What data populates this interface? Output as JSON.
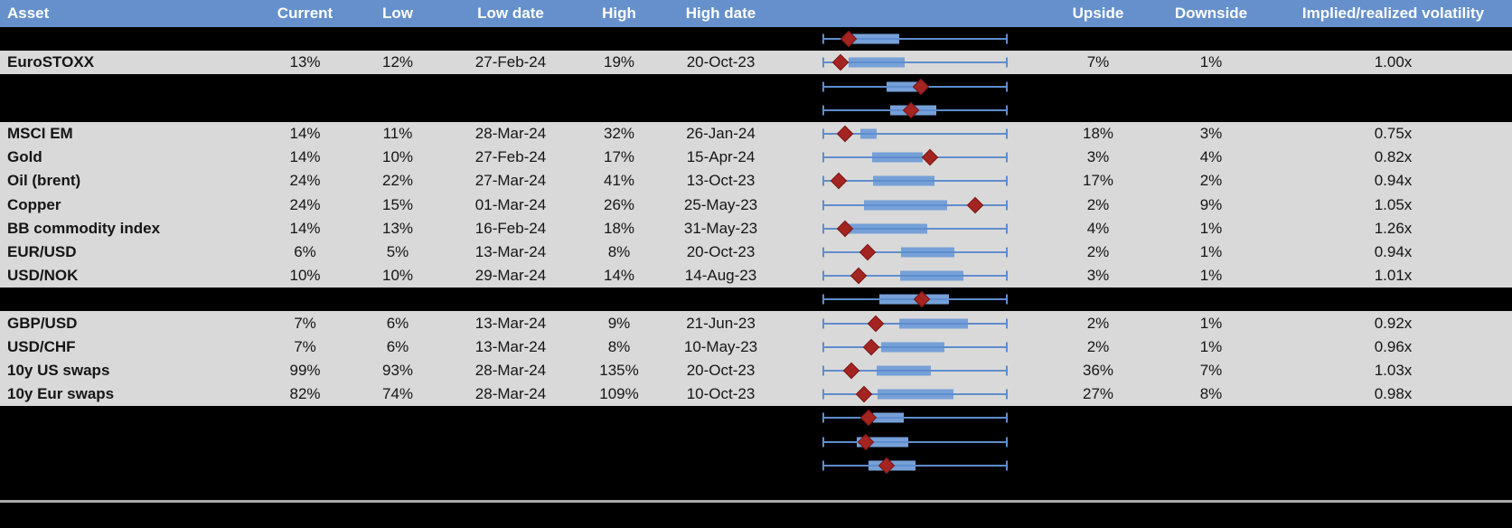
{
  "header": {
    "columns": [
      {
        "label": "Asset"
      },
      {
        "label": "Current"
      },
      {
        "label": "Low"
      },
      {
        "label": "Low date"
      },
      {
        "label": "High"
      },
      {
        "label": "High date"
      },
      {
        "label": ""
      },
      {
        "label": "Upside"
      },
      {
        "label": "Downside"
      },
      {
        "label": "Implied/realized volatility"
      }
    ]
  },
  "colors": {
    "header_bg": "#6590cb",
    "header_text": "#ffffff",
    "row_gray": "#d9d9d9",
    "row_hidden": "#000000",
    "box_fill": "#76a0d8",
    "whisker_blue": "#5f8dce",
    "marker_red": "#a32421",
    "bottom_divider": "#ababab"
  },
  "chart_data": {
    "type": "table",
    "title": "",
    "notes": "Implied volatility table with per-row box-whisker range chart; whiskers span full 12m low-high range (0-100% of plot width), box = middle range, red diamond = current level. Hidden rows are blacked out but their boxplots remain visible. Geometry values are percent of plot width.",
    "boxplot_scale": {
      "min_pct": 0,
      "max_pct": 100
    },
    "rows": [
      {
        "type": "hidden",
        "boxplot": {
          "box_start": 15.1,
          "box_end": 41.5,
          "marker": 14.1
        }
      },
      {
        "type": "data",
        "asset": "EuroSTOXX",
        "current": "13%",
        "low": "12%",
        "low_date": "27-Feb-24",
        "high": "19%",
        "high_date": "20-Oct-23",
        "upside": "7%",
        "downside": "1%",
        "implied_realized": "1.00x",
        "boxplot": {
          "box_start": 14.1,
          "box_end": 44.4,
          "marker": 9.8
        }
      },
      {
        "type": "hidden",
        "boxplot": {
          "box_start": 34.6,
          "box_end": 51.2,
          "marker": 53.2
        }
      },
      {
        "type": "hidden",
        "boxplot": {
          "box_start": 36.6,
          "box_end": 61.5,
          "marker": 47.8
        }
      },
      {
        "type": "data",
        "asset": "MSCI EM",
        "current": "14%",
        "low": "11%",
        "low_date": "28-Mar-24",
        "high": "32%",
        "high_date": "26-Jan-24",
        "upside": "18%",
        "downside": "3%",
        "implied_realized": "0.75x",
        "boxplot": {
          "box_start": 20.5,
          "box_end": 29.3,
          "marker": 12.2
        }
      },
      {
        "type": "data",
        "asset": "Gold",
        "current": "14%",
        "low": "10%",
        "low_date": "27-Feb-24",
        "high": "17%",
        "high_date": "15-Apr-24",
        "upside": "3%",
        "downside": "4%",
        "implied_realized": "0.82x",
        "boxplot": {
          "box_start": 26.8,
          "box_end": 54.1,
          "marker": 58.0
        }
      },
      {
        "type": "data",
        "asset": "Oil (brent)",
        "current": "24%",
        "low": "22%",
        "low_date": "27-Mar-24",
        "high": "41%",
        "high_date": "13-Oct-23",
        "upside": "17%",
        "downside": "2%",
        "implied_realized": "0.94x",
        "boxplot": {
          "box_start": 27.3,
          "box_end": 60.5,
          "marker": 8.8
        }
      },
      {
        "type": "data",
        "asset": "Copper",
        "current": "24%",
        "low": "15%",
        "low_date": "01-Mar-24",
        "high": "26%",
        "high_date": "25-May-23",
        "upside": "2%",
        "downside": "9%",
        "implied_realized": "1.05x",
        "boxplot": {
          "box_start": 22.4,
          "box_end": 67.3,
          "marker": 82.4
        }
      },
      {
        "type": "data",
        "asset": "BB commodity index",
        "current": "14%",
        "low": "13%",
        "low_date": "16-Feb-24",
        "high": "18%",
        "high_date": "31-May-23",
        "upside": "4%",
        "downside": "1%",
        "implied_realized": "1.26x",
        "boxplot": {
          "box_start": 13.7,
          "box_end": 56.6,
          "marker": 12.2
        }
      },
      {
        "type": "data",
        "asset": "EUR/USD",
        "current": "6%",
        "low": "5%",
        "low_date": "13-Mar-24",
        "high": "8%",
        "high_date": "20-Oct-23",
        "upside": "2%",
        "downside": "1%",
        "implied_realized": "0.94x",
        "boxplot": {
          "box_start": 42.4,
          "box_end": 71.2,
          "marker": 24.4
        }
      },
      {
        "type": "data",
        "asset": "USD/NOK",
        "current": "10%",
        "low": "10%",
        "low_date": "29-Mar-24",
        "high": "14%",
        "high_date": "14-Aug-23",
        "upside": "3%",
        "downside": "1%",
        "implied_realized": "1.01x",
        "boxplot": {
          "box_start": 42.0,
          "box_end": 76.1,
          "marker": 19.5
        }
      },
      {
        "type": "hidden",
        "boxplot": {
          "box_start": 30.7,
          "box_end": 68.3,
          "marker": 53.7
        }
      },
      {
        "type": "data",
        "asset": "GBP/USD",
        "current": "7%",
        "low": "6%",
        "low_date": "13-Mar-24",
        "high": "9%",
        "high_date": "21-Jun-23",
        "upside": "2%",
        "downside": "1%",
        "implied_realized": "0.92x",
        "boxplot": {
          "box_start": 41.5,
          "box_end": 78.5,
          "marker": 28.8
        }
      },
      {
        "type": "data",
        "asset": "USD/CHF",
        "current": "7%",
        "low": "6%",
        "low_date": "13-Mar-24",
        "high": "8%",
        "high_date": "10-May-23",
        "upside": "2%",
        "downside": "1%",
        "implied_realized": "0.96x",
        "boxplot": {
          "box_start": 31.7,
          "box_end": 65.9,
          "marker": 26.3
        }
      },
      {
        "type": "data",
        "asset": "10y US swaps",
        "current": "99%",
        "low": "93%",
        "low_date": "28-Mar-24",
        "high": "135%",
        "high_date": "20-Oct-23",
        "upside": "36%",
        "downside": "7%",
        "implied_realized": "1.03x",
        "boxplot": {
          "box_start": 29.3,
          "box_end": 58.5,
          "marker": 15.6
        }
      },
      {
        "type": "data",
        "asset": "10y Eur swaps",
        "current": "82%",
        "low": "74%",
        "low_date": "28-Mar-24",
        "high": "109%",
        "high_date": "10-Oct-23",
        "upside": "27%",
        "downside": "8%",
        "implied_realized": "0.98x",
        "boxplot": {
          "box_start": 29.8,
          "box_end": 70.7,
          "marker": 22.4
        }
      },
      {
        "type": "hidden",
        "boxplot": {
          "box_start": 27.3,
          "box_end": 43.9,
          "marker": 24.9
        }
      },
      {
        "type": "hidden",
        "boxplot": {
          "box_start": 18.5,
          "box_end": 46.3,
          "marker": 23.4
        }
      },
      {
        "type": "hidden",
        "boxplot": {
          "box_start": 24.9,
          "box_end": 50.2,
          "marker": 34.6
        }
      }
    ]
  }
}
